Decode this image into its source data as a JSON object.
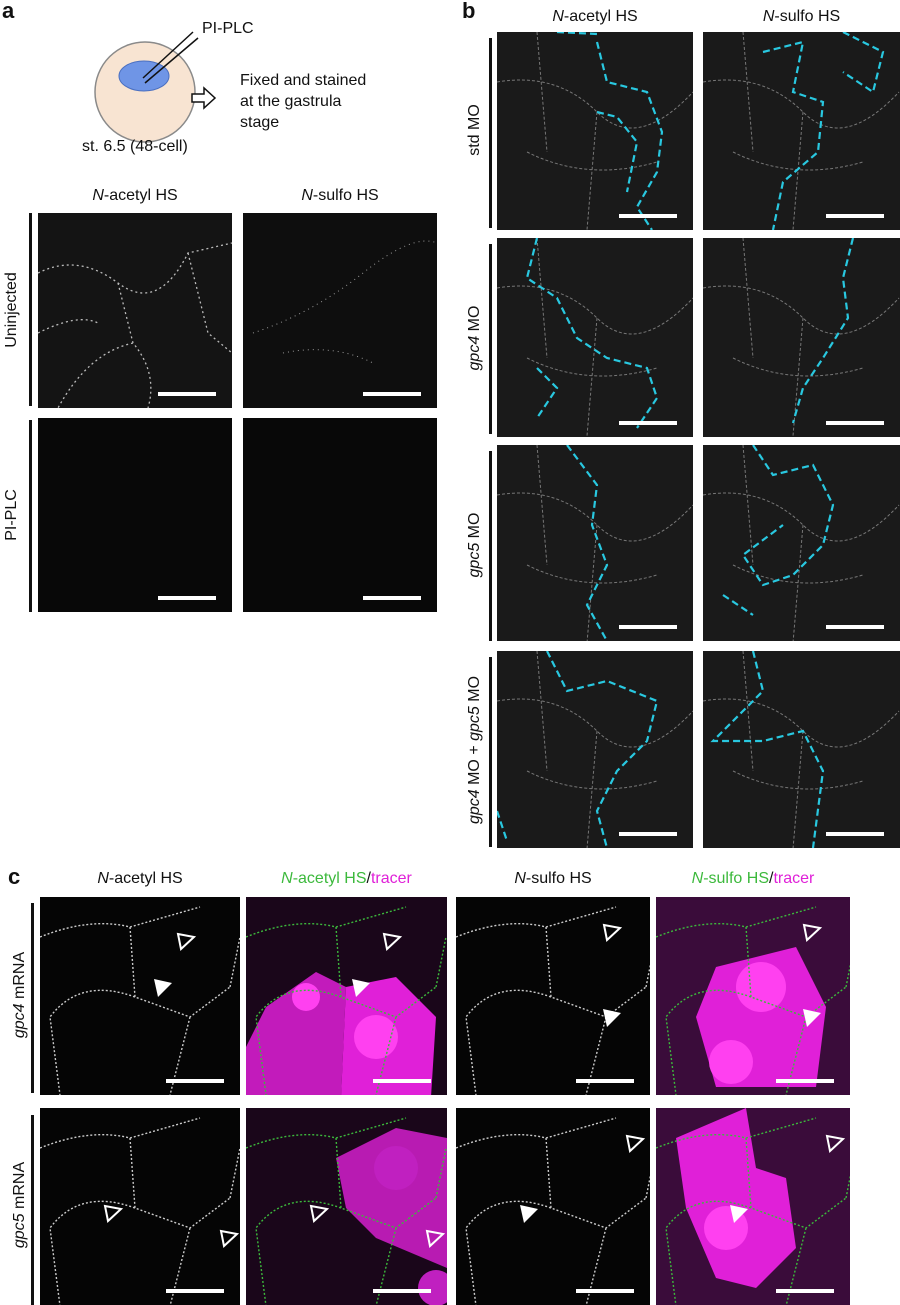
{
  "panel_a": {
    "letter": "a",
    "diagram": {
      "injection_label": "PI-PLC",
      "stage_label": "st. 6.5 (48-cell)",
      "result_lines": [
        "Fixed and stained",
        "at the gastrula",
        "stage"
      ],
      "colors": {
        "embryo": "#f8e4d2",
        "injection_site": "#6f95e6"
      }
    },
    "columns": [
      {
        "italic": "N",
        "rest": "-acetyl HS"
      },
      {
        "italic": "N",
        "rest": "-sulfo HS"
      }
    ],
    "rows": [
      "Uninjected",
      "PI-PLC"
    ]
  },
  "panel_b": {
    "letter": "b",
    "columns": [
      {
        "italic": "N",
        "rest": "-acetyl HS"
      },
      {
        "italic": "N",
        "rest": "-sulfo HS"
      }
    ],
    "rows": [
      {
        "italic": "",
        "rest": "std MO"
      },
      {
        "italic": "gpc4",
        "rest": " MO"
      },
      {
        "italic": "gpc5",
        "rest": " MO"
      },
      {
        "italic": "gpc4",
        "rest": " MO + ",
        "italic2": "gpc5",
        "rest2": " MO"
      }
    ],
    "boundary_color": "#29c8e0"
  },
  "panel_c": {
    "letter": "c",
    "columns": [
      {
        "italic": "N",
        "rest": "-acetyl HS",
        "slash": "",
        "tracer": ""
      },
      {
        "italic": "N",
        "rest": "-acetyl HS",
        "slash": "/",
        "tracer": "tracer"
      },
      {
        "italic": "N",
        "rest": "-sulfo HS",
        "slash": "",
        "tracer": ""
      },
      {
        "italic": "N",
        "rest": "-sulfo HS",
        "slash": "/",
        "tracer": "tracer"
      }
    ],
    "rows": [
      {
        "italic": "gpc4",
        "rest": " mRNA"
      },
      {
        "italic": "gpc5",
        "rest": " mRNA"
      }
    ],
    "colors": {
      "hs": "#3cb93c",
      "tracer": "#e020d8"
    },
    "arrowheads": {
      "filled": "filled-arrowhead-icon",
      "open": "open-arrowhead-icon"
    }
  }
}
